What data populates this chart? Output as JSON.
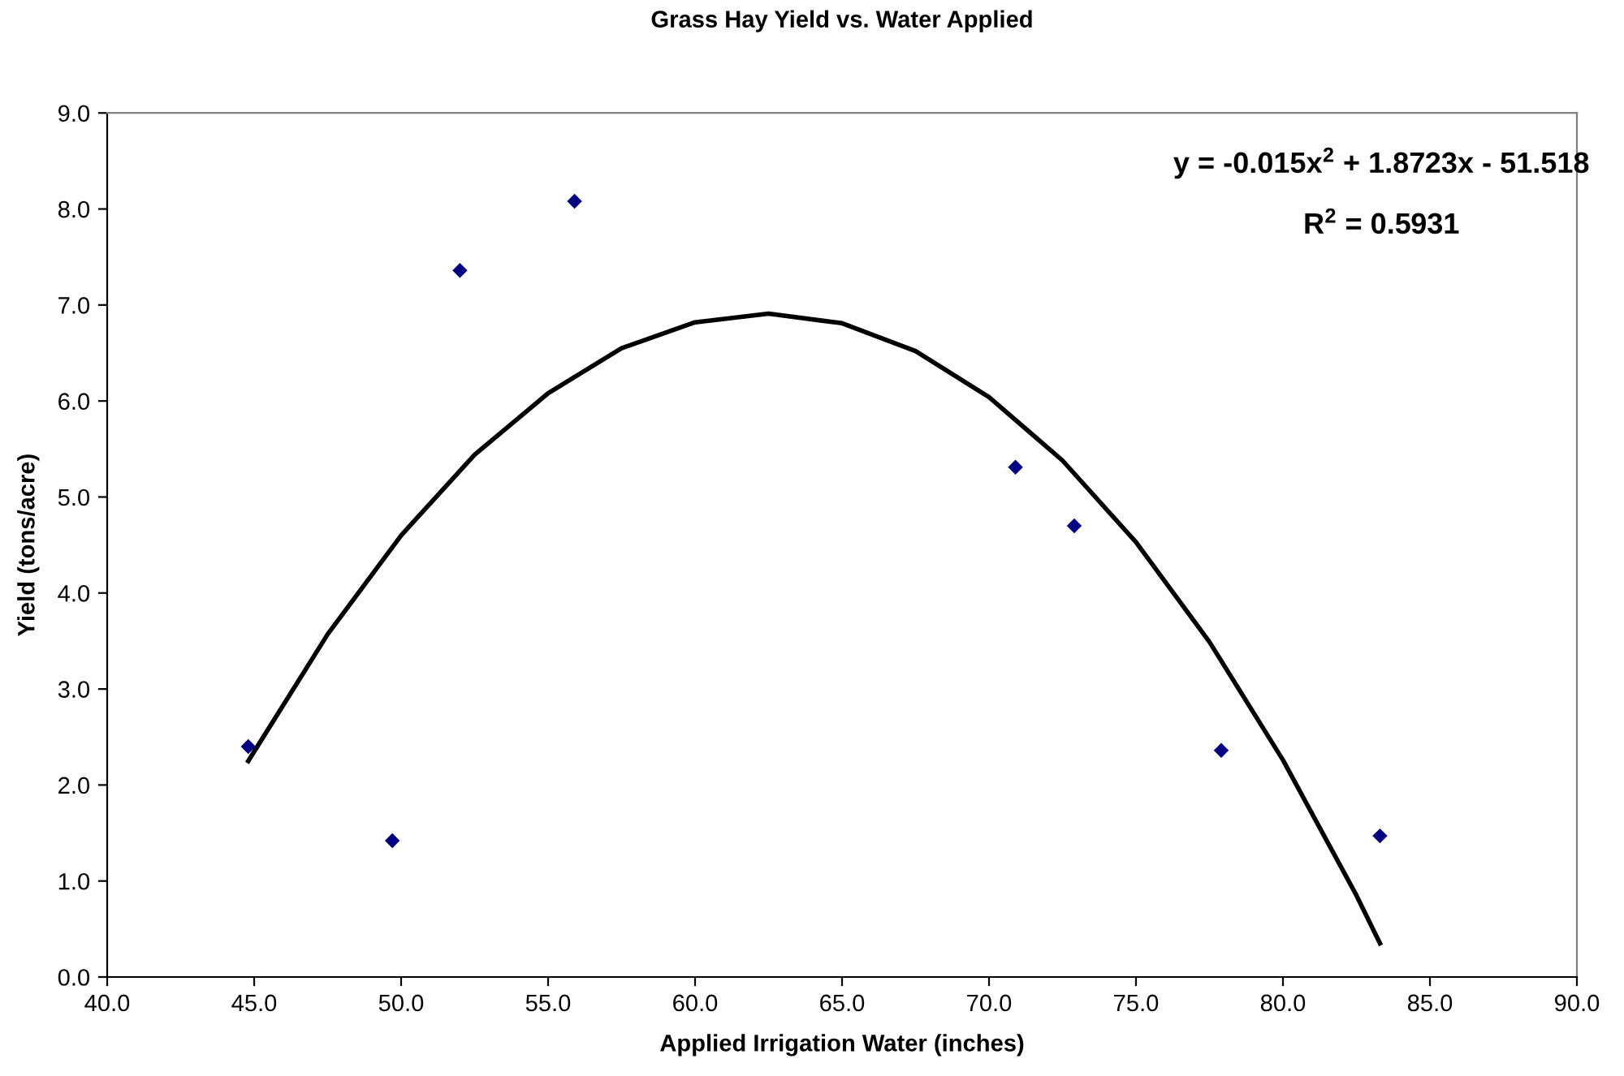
{
  "chart_data": {
    "type": "scatter",
    "title": "Grass Hay Yield vs. Water Applied",
    "xlabel": "Applied Irrigation Water (inches)",
    "ylabel": "Yield (tons/acre)",
    "xlim": [
      40,
      90
    ],
    "xticks": [
      {
        "value": 40,
        "label": "40.0"
      },
      {
        "value": 45,
        "label": "45.0"
      },
      {
        "value": 50,
        "label": "50.0"
      },
      {
        "value": 55,
        "label": "55.0"
      },
      {
        "value": 60,
        "label": "60.0"
      },
      {
        "value": 65,
        "label": "65.0"
      },
      {
        "value": 70,
        "label": "70.0"
      },
      {
        "value": 75,
        "label": "75.0"
      },
      {
        "value": 80,
        "label": "80.0"
      },
      {
        "value": 85,
        "label": "85.0"
      },
      {
        "value": 90,
        "label": "90.0"
      }
    ],
    "ylim": [
      0,
      9
    ],
    "yticks": [
      {
        "value": 0,
        "label": "0.0"
      },
      {
        "value": 1,
        "label": "1.0"
      },
      {
        "value": 2,
        "label": "2.0"
      },
      {
        "value": 3,
        "label": "3.0"
      },
      {
        "value": 4,
        "label": "4.0"
      },
      {
        "value": 5,
        "label": "5.0"
      },
      {
        "value": 6,
        "label": "6.0"
      },
      {
        "value": 7,
        "label": "7.0"
      },
      {
        "value": 8,
        "label": "8.0"
      },
      {
        "value": 9,
        "label": "9.0"
      }
    ],
    "grid": false,
    "legend": false,
    "series": [
      {
        "marker": "diamond",
        "color": "#000080",
        "x": [
          44.8,
          49.7,
          52.0,
          55.9,
          70.9,
          72.9,
          77.9,
          83.3
        ],
        "values": [
          2.4,
          1.42,
          7.36,
          8.08,
          5.31,
          4.7,
          2.36,
          1.47
        ]
      },
      {
        "type": "line",
        "marker": "none",
        "line_style": "solid",
        "color": "#000000",
        "x": [
          44.8,
          47.5,
          50,
          52.5,
          55,
          57.5,
          60,
          62.5,
          65,
          67.5,
          70,
          72.5,
          75,
          77.5,
          80,
          82.5,
          83.3
        ],
        "values": [
          2.25,
          3.57,
          4.6,
          5.44,
          6.08,
          6.55,
          6.82,
          6.91,
          6.81,
          6.52,
          6.04,
          5.38,
          4.53,
          3.49,
          2.26,
          0.85,
          0.35
        ]
      }
    ],
    "annotations": [
      "y = -0.015x$^{2}$ + 1.8723x - 51.518",
      "R$^{2}$ = 0.5931"
    ]
  }
}
